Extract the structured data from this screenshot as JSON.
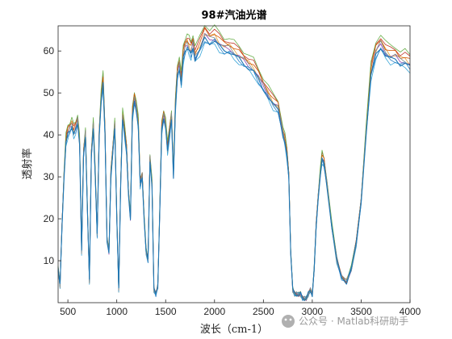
{
  "chart_data": {
    "type": "line",
    "title": "98#汽油光谱",
    "xlabel": "波长（cm-1）",
    "ylabel": "透射率",
    "xlim": [
      400,
      4000
    ],
    "ylim": [
      0,
      66
    ],
    "x_ticks": [
      "500",
      "1000",
      "1500",
      "2000",
      "2500",
      "3000",
      "3500",
      "4000"
    ],
    "y_ticks": [
      "10",
      "20",
      "30",
      "40",
      "50",
      "60"
    ],
    "grid": false,
    "legend": "none",
    "series_colors": [
      "#c0392b",
      "#e6a23c",
      "#8e44ad",
      "#6ab04c",
      "#3aa6d8",
      "#d35400",
      "#2c82c9",
      "#7f8c8d",
      "#1f77b4"
    ],
    "series_offsets": [
      2.5,
      1.2,
      0.6,
      3.2,
      -0.8,
      1.8,
      -0.2,
      0.9,
      0.0
    ],
    "representative_series": {
      "x": [
        400,
        420,
        440,
        460,
        480,
        500,
        520,
        540,
        560,
        580,
        600,
        620,
        640,
        660,
        680,
        700,
        720,
        740,
        760,
        780,
        800,
        820,
        840,
        860,
        880,
        900,
        920,
        940,
        960,
        980,
        1000,
        1020,
        1040,
        1060,
        1080,
        1100,
        1120,
        1140,
        1160,
        1180,
        1200,
        1220,
        1240,
        1260,
        1280,
        1300,
        1320,
        1340,
        1360,
        1380,
        1400,
        1420,
        1440,
        1460,
        1480,
        1500,
        1520,
        1540,
        1560,
        1580,
        1600,
        1620,
        1640,
        1660,
        1680,
        1700,
        1720,
        1740,
        1760,
        1780,
        1800,
        1850,
        1900,
        1950,
        2000,
        2050,
        2100,
        2150,
        2200,
        2250,
        2300,
        2350,
        2400,
        2450,
        2500,
        2550,
        2600,
        2650,
        2700,
        2720,
        2740,
        2760,
        2780,
        2800,
        2820,
        2840,
        2860,
        2880,
        2900,
        2920,
        2940,
        2960,
        2980,
        3000,
        3020,
        3040,
        3060,
        3080,
        3100,
        3120,
        3150,
        3200,
        3250,
        3300,
        3350,
        3400,
        3450,
        3500,
        3550,
        3600,
        3650,
        3700,
        3750,
        3800,
        3850,
        3900,
        3950,
        4000
      ],
      "y": [
        8,
        4,
        18,
        30,
        38,
        40,
        41,
        42,
        40,
        41,
        43,
        38,
        12,
        35,
        40,
        22,
        5,
        35,
        42,
        30,
        16,
        40,
        48,
        52,
        40,
        15,
        12,
        30,
        36,
        42,
        20,
        3,
        28,
        44,
        40,
        36,
        26,
        20,
        44,
        48,
        46,
        42,
        28,
        30,
        20,
        12,
        10,
        34,
        28,
        3,
        2,
        4,
        22,
        41,
        44,
        42,
        36,
        40,
        44,
        30,
        46,
        54,
        56,
        52,
        58,
        60,
        61,
        60,
        59,
        61,
        58,
        60,
        63,
        62,
        62.5,
        61,
        60,
        60,
        59,
        58,
        57,
        56,
        55,
        53,
        51,
        49,
        47,
        46,
        40,
        38,
        35,
        30,
        12,
        3,
        2,
        2,
        2,
        2,
        1,
        1,
        1,
        2,
        3,
        2,
        8,
        18,
        25,
        30,
        34,
        33,
        28,
        18,
        10,
        6,
        5,
        8,
        14,
        24,
        40,
        54,
        59,
        61,
        59,
        58,
        58,
        57,
        57,
        56
      ]
    }
  },
  "watermark": "公众号 · Matlab科研助手"
}
